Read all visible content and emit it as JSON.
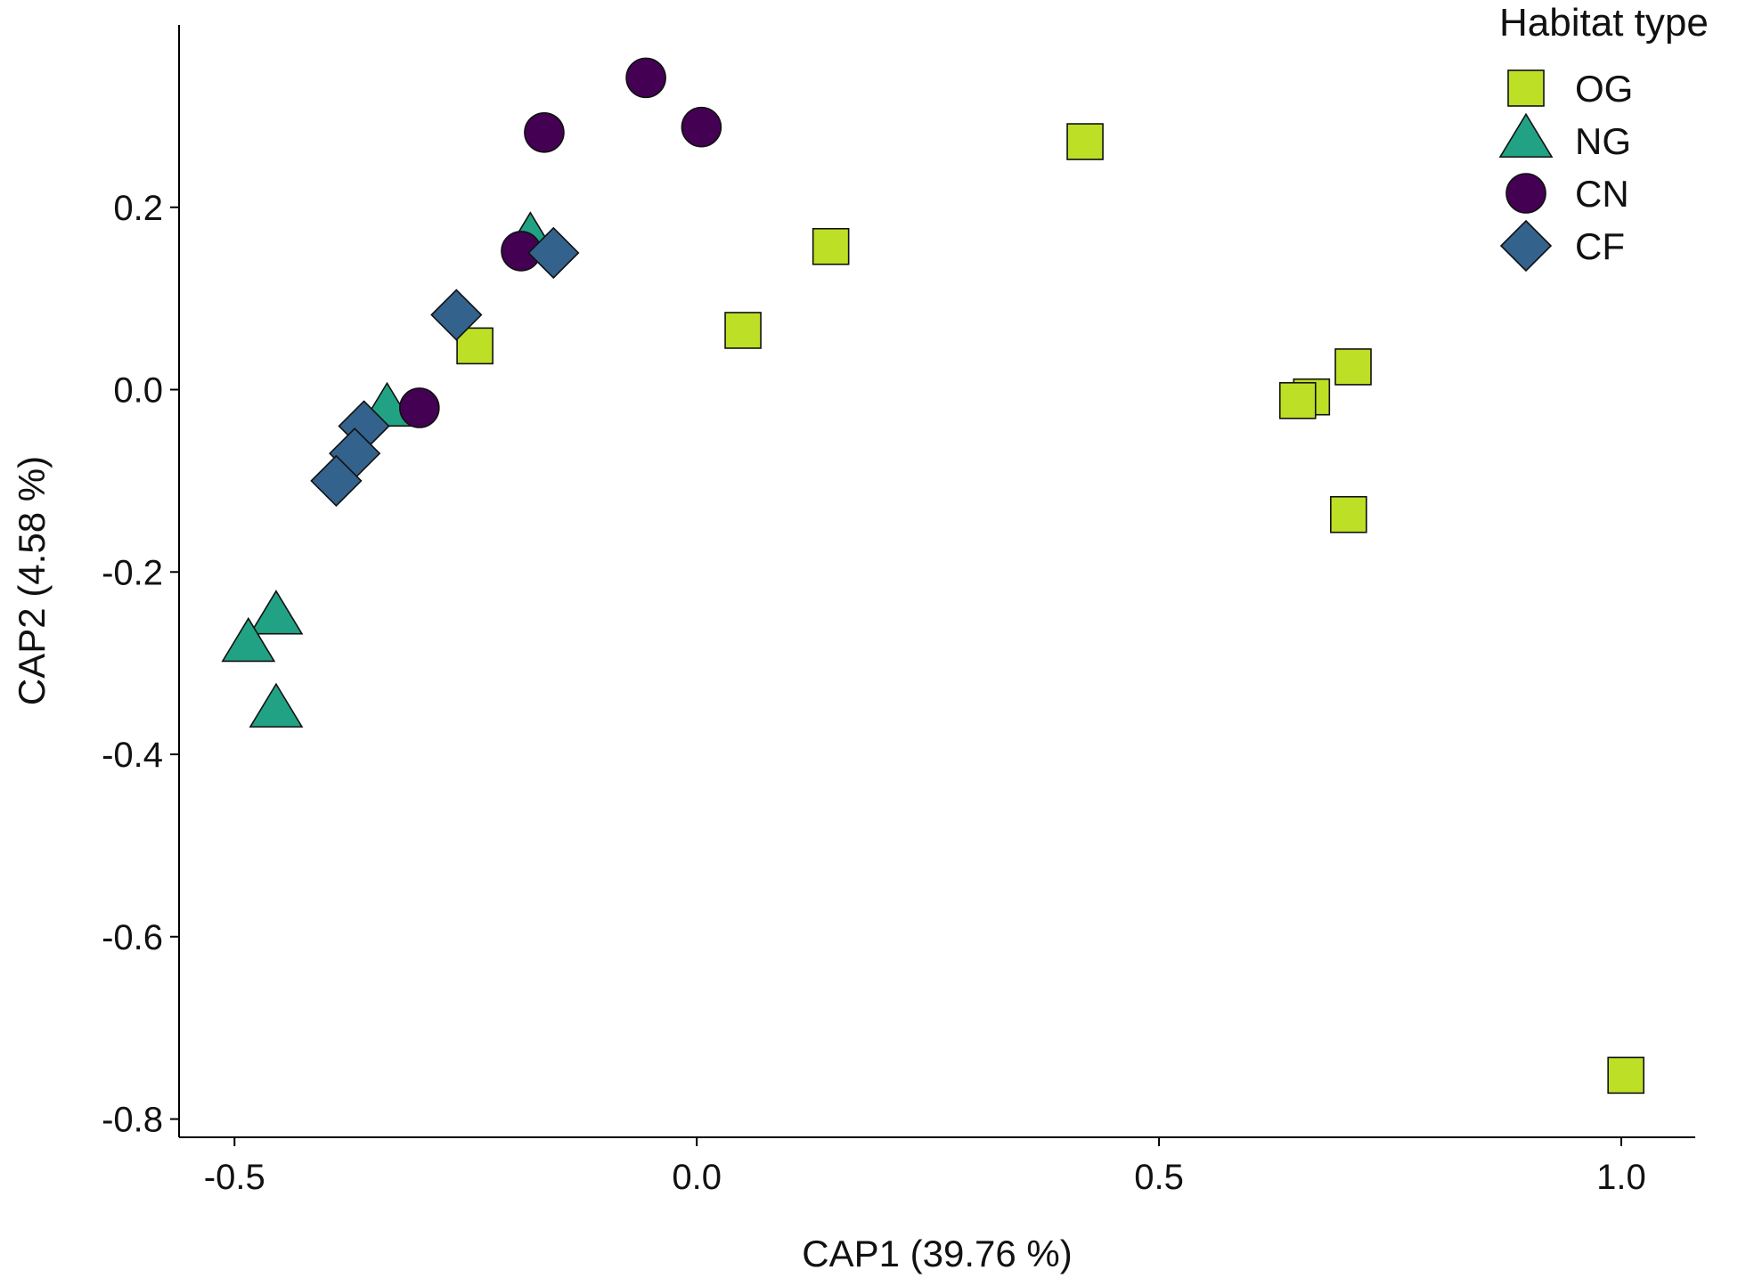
{
  "chart_data": {
    "type": "scatter",
    "title": "",
    "xlabel": "CAP1 (39.76 %)",
    "ylabel": "CAP2 (4.58 %)",
    "xlim": [
      -0.56,
      1.08
    ],
    "ylim": [
      -0.82,
      0.4
    ],
    "xticks": [
      -0.5,
      0.0,
      0.5,
      1.0
    ],
    "xtick_labels": [
      "-0.5",
      "0.0",
      "0.5",
      "1.0"
    ],
    "yticks": [
      -0.8,
      -0.6,
      -0.4,
      -0.2,
      0.0,
      0.2
    ],
    "ytick_labels": [
      "-0.8",
      "-0.6",
      "-0.4",
      "-0.2",
      "0.0",
      "0.2"
    ],
    "grid": false,
    "legend": {
      "title": "Habitat type",
      "placement": "top-right"
    },
    "series": [
      {
        "name": "OG",
        "marker": "square",
        "color": "#bddf26",
        "points": [
          {
            "x": -0.24,
            "y": 0.048
          },
          {
            "x": 0.05,
            "y": 0.065
          },
          {
            "x": 0.145,
            "y": 0.157
          },
          {
            "x": 0.42,
            "y": 0.272
          },
          {
            "x": 0.665,
            "y": -0.008
          },
          {
            "x": 0.65,
            "y": -0.012
          },
          {
            "x": 0.71,
            "y": 0.025
          },
          {
            "x": 0.705,
            "y": -0.137
          },
          {
            "x": 1.005,
            "y": -0.752
          }
        ]
      },
      {
        "name": "NG",
        "marker": "triangle",
        "color": "#22a284",
        "points": [
          {
            "x": -0.18,
            "y": 0.165
          },
          {
            "x": -0.335,
            "y": -0.022
          },
          {
            "x": -0.455,
            "y": -0.25
          },
          {
            "x": -0.485,
            "y": -0.28
          },
          {
            "x": -0.455,
            "y": -0.352
          }
        ]
      },
      {
        "name": "CN",
        "marker": "circle",
        "color": "#440154",
        "points": [
          {
            "x": -0.055,
            "y": 0.342
          },
          {
            "x": 0.005,
            "y": 0.288
          },
          {
            "x": -0.165,
            "y": 0.282
          },
          {
            "x": -0.19,
            "y": 0.152
          },
          {
            "x": -0.3,
            "y": -0.02
          }
        ]
      },
      {
        "name": "CF",
        "marker": "diamond",
        "color": "#33628d",
        "points": [
          {
            "x": -0.155,
            "y": 0.15
          },
          {
            "x": -0.26,
            "y": 0.082
          },
          {
            "x": -0.36,
            "y": -0.04
          },
          {
            "x": -0.37,
            "y": -0.07
          },
          {
            "x": -0.39,
            "y": -0.1
          }
        ]
      }
    ]
  }
}
